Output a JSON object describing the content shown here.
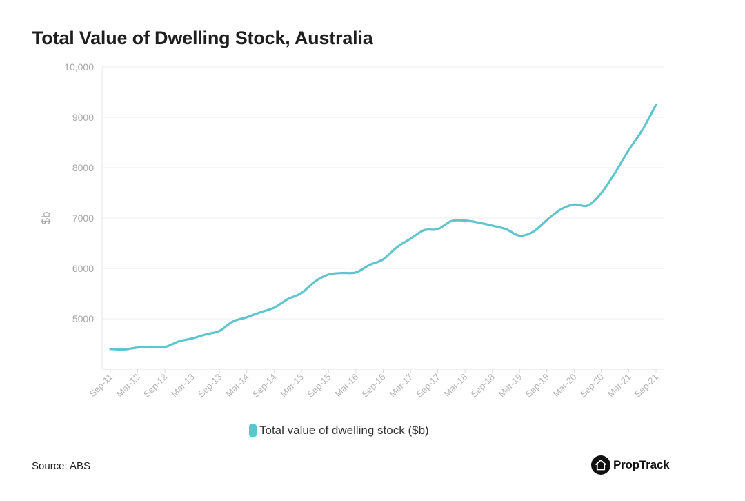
{
  "chart_data": {
    "type": "line",
    "title": "Total Value of Dwelling Stock, Australia",
    "xlabel": "",
    "ylabel": "$b",
    "ylim": [
      4000,
      10000
    ],
    "yticks": [
      5000,
      6000,
      7000,
      8000,
      9000,
      10000
    ],
    "ytick_labels": [
      "5000",
      "6000",
      "7000",
      "8000",
      "9000",
      "10,000"
    ],
    "x": [
      "Sep-11",
      "Dec-11",
      "Mar-12",
      "Jun-12",
      "Sep-12",
      "Dec-12",
      "Mar-13",
      "Jun-13",
      "Sep-13",
      "Dec-13",
      "Mar-14",
      "Jun-14",
      "Sep-14",
      "Dec-14",
      "Mar-15",
      "Jun-15",
      "Sep-15",
      "Dec-15",
      "Mar-16",
      "Jun-16",
      "Sep-16",
      "Dec-16",
      "Mar-17",
      "Jun-17",
      "Sep-17",
      "Dec-17",
      "Mar-18",
      "Jun-18",
      "Sep-18",
      "Dec-18",
      "Mar-19",
      "Jun-19",
      "Sep-19",
      "Dec-19",
      "Mar-20",
      "Jun-20",
      "Sep-20",
      "Dec-20",
      "Mar-21",
      "Jun-21",
      "Sep-21"
    ],
    "xtick_labels": [
      "Sep-11",
      "Mar-12",
      "Sep-12",
      "Mar-13",
      "Sep-13",
      "Mar-14",
      "Sep-14",
      "Mar-15",
      "Sep-15",
      "Mar-16",
      "Sep-16",
      "Mar-17",
      "Sep-17",
      "Mar-18",
      "Sep-18",
      "Mar-19",
      "Sep-19",
      "Mar-20",
      "Sep-20",
      "Mar-21",
      "Sep-21"
    ],
    "series": [
      {
        "name": "Total value of dwelling stock ($b)",
        "color": "#5ec5cc",
        "values": [
          4400,
          4390,
          4430,
          4445,
          4440,
          4550,
          4610,
          4690,
          4760,
          4950,
          5030,
          5130,
          5220,
          5390,
          5510,
          5740,
          5880,
          5910,
          5920,
          6070,
          6180,
          6420,
          6590,
          6760,
          6780,
          6940,
          6950,
          6910,
          6850,
          6780,
          6650,
          6730,
          6960,
          7170,
          7270,
          7250,
          7500,
          7900,
          8350,
          8750,
          9250
        ]
      }
    ],
    "grid": true,
    "legend_position": "bottom-center"
  },
  "footer": {
    "source": "Source: ABS",
    "brand": "PropTrack",
    "brand_icon": "house-icon"
  }
}
